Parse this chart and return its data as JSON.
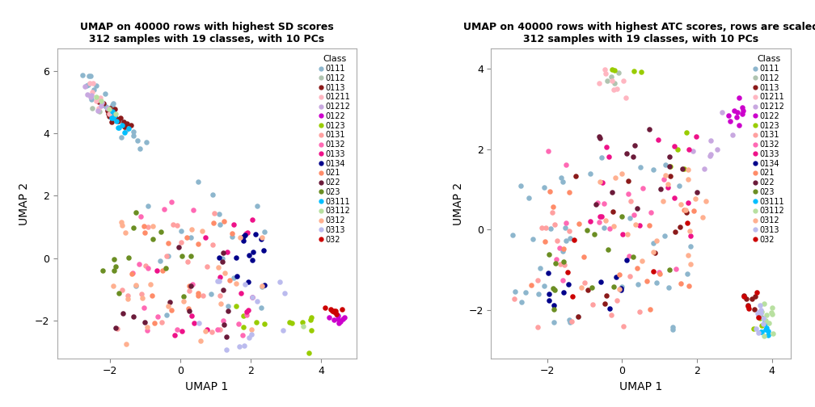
{
  "title1": "UMAP on 40000 rows with highest SD scores\n312 samples with 19 classes, with 10 PCs",
  "title2": "UMAP on 40000 rows with highest ATC scores, rows are scaled\n312 samples with 19 classes, with 10 PCs",
  "xlabel": "UMAP 1",
  "ylabel": "UMAP 2",
  "legend_title": "Class",
  "classes": [
    "0111",
    "0112",
    "0113",
    "01211",
    "01212",
    "0122",
    "0123",
    "0131",
    "0132",
    "0133",
    "0134",
    "021",
    "022",
    "023",
    "03111",
    "03112",
    "0312",
    "0313",
    "032"
  ],
  "class_colors": {
    "0111": "#8DB6CD",
    "0112": "#B0C4B0",
    "0113": "#8B1A1A",
    "01211": "#FFB6C1",
    "01212": "#C8A8E0",
    "0122": "#CC00CC",
    "0123": "#99CC00",
    "0131": "#FFA0A0",
    "0132": "#FF69B4",
    "0133": "#EE1289",
    "0134": "#00008B",
    "021": "#FF8C69",
    "022": "#6B1B3A",
    "023": "#6B8E23",
    "03111": "#00BFFF",
    "03112": "#B8E0A0",
    "0312": "#FFB090",
    "0313": "#BBBBEE",
    "032": "#CC0000"
  },
  "xlim1": [
    -3.5,
    5.0
  ],
  "ylim1": [
    -3.2,
    6.7
  ],
  "xlim2": [
    -3.5,
    4.5
  ],
  "ylim2": [
    -3.2,
    4.5
  ],
  "xticks1": [
    -2,
    0,
    2,
    4
  ],
  "yticks1": [
    -2,
    0,
    2,
    4,
    6
  ],
  "xticks2": [
    -2,
    0,
    2,
    4
  ],
  "yticks2": [
    -2,
    0,
    2,
    4
  ],
  "point_size": 22,
  "alpha": 1.0,
  "background_color": "#FFFFFF"
}
